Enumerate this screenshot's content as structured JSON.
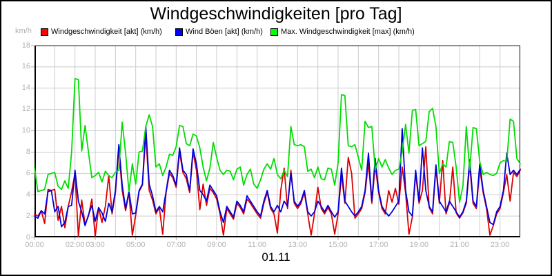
{
  "window": {
    "background": "#ffffff",
    "frame_border": "#000000"
  },
  "chart_data": {
    "type": "line",
    "title": "Windgeschwindigkeiten [pro Tag]",
    "xlabel": "01.11",
    "ylabel": "km/h",
    "ylim": [
      0,
      18
    ],
    "xlim_hours": [
      0,
      24
    ],
    "x_interval_minutes": 10,
    "grid": true,
    "legend_position": "top",
    "colors": {
      "grid": "#cccccc",
      "axis_text": "#b0b0b0",
      "axis_line": "#000000",
      "plot_bg": "#ffffff"
    },
    "y_ticks": [
      0,
      2,
      4,
      6,
      8,
      10,
      12,
      14,
      16,
      18
    ],
    "x_ticks": [
      {
        "hour": 0,
        "label": "00:00"
      },
      {
        "hour": 2,
        "label": "02:00"
      },
      {
        "hour": 3,
        "label": "03:00"
      },
      {
        "hour": 5,
        "label": "05:00"
      },
      {
        "hour": 7,
        "label": "07:00"
      },
      {
        "hour": 9,
        "label": "09:00"
      },
      {
        "hour": 11,
        "label": "11:00"
      },
      {
        "hour": 13,
        "label": "13:00"
      },
      {
        "hour": 15,
        "label": "15:00"
      },
      {
        "hour": 17,
        "label": "17:00"
      },
      {
        "hour": 19,
        "label": "19:00"
      },
      {
        "hour": 21,
        "label": "21:00"
      },
      {
        "hour": 23,
        "label": "23:00"
      }
    ],
    "series": [
      {
        "name": "Windgeschwindigkeit [akt] (km/h)",
        "color": "#dd0000",
        "swatch": "#ff0000",
        "values": [
          2.2,
          2.0,
          2.5,
          1.3,
          4.5,
          4.4,
          4.5,
          1.6,
          2.9,
          0.9,
          2.9,
          4.3,
          6.0,
          0.1,
          3.5,
          1.2,
          2.0,
          3.6,
          0.1,
          2.8,
          1.4,
          2.9,
          5.8,
          2.2,
          4.2,
          8.2,
          4.4,
          2.5,
          4.2,
          0.2,
          2.1,
          4.3,
          4.9,
          9.7,
          4.4,
          3.5,
          2.2,
          2.8,
          0.3,
          4.2,
          6.0,
          5.6,
          4.7,
          8.0,
          6.1,
          5.5,
          4.2,
          8.0,
          6.3,
          2.6,
          5.0,
          3.0,
          4.6,
          4.2,
          3.6,
          2.2,
          0.2,
          2.7,
          2.2,
          1.7,
          3.2,
          2.8,
          2.2,
          3.6,
          3.2,
          2.7,
          2.2,
          1.8,
          3.2,
          4.2,
          2.7,
          2.2,
          0.4,
          4.4,
          6.5,
          2.7,
          6.3,
          3.2,
          2.7,
          3.2,
          4.2,
          2.2,
          0.2,
          2.2,
          4.7,
          2.7,
          2.2,
          2.8,
          2.2,
          0.3,
          2.2,
          5.9,
          3.2,
          7.5,
          6.0,
          1.8,
          2.2,
          2.7,
          4.2,
          7.0,
          3.2,
          6.8,
          4.2,
          2.7,
          2.2,
          4.4,
          3.3,
          4.6,
          3.1,
          6.6,
          4.2,
          0.3,
          1.9,
          6.0,
          3.2,
          4.4,
          8.5,
          2.8,
          2.2,
          6.5,
          3.2,
          7.2,
          2.2,
          3.2,
          6.6,
          2.3,
          1.8,
          2.3,
          3.2,
          6.8,
          3.2,
          2.7,
          6.5,
          4.2,
          2.7,
          0.2,
          1.1,
          2.2,
          2.7,
          4.2,
          5.9,
          3.4,
          6.1,
          5.7,
          6.3
        ]
      },
      {
        "name": "Wind Böen [akt] (km/h)",
        "color": "#0000dd",
        "swatch": "#0000ff",
        "values": [
          2.0,
          1.8,
          2.5,
          2.2,
          4.3,
          4.4,
          2.4,
          2.9,
          1.0,
          1.4,
          2.9,
          3.0,
          6.3,
          3.4,
          2.4,
          1.1,
          2.1,
          3.0,
          1.5,
          2.8,
          2.3,
          1.5,
          3.2,
          2.4,
          4.4,
          8.7,
          4.9,
          2.7,
          4.3,
          2.2,
          2.3,
          4.4,
          5.0,
          10.4,
          5.0,
          3.9,
          2.4,
          2.9,
          2.4,
          4.3,
          6.3,
          5.8,
          4.9,
          8.4,
          6.3,
          5.9,
          4.4,
          8.3,
          6.9,
          4.4,
          4.0,
          3.4,
          4.9,
          4.4,
          3.9,
          2.4,
          1.4,
          2.9,
          2.4,
          1.9,
          3.4,
          3.0,
          2.4,
          3.9,
          3.4,
          2.9,
          2.4,
          2.0,
          3.4,
          4.4,
          2.9,
          2.4,
          3.0,
          2.4,
          3.4,
          2.9,
          6.0,
          3.4,
          2.9,
          3.4,
          4.4,
          2.4,
          2.0,
          2.4,
          3.4,
          2.9,
          2.4,
          3.0,
          2.4,
          1.9,
          2.4,
          6.5,
          3.4,
          2.9,
          2.4,
          2.0,
          2.4,
          2.9,
          4.4,
          7.9,
          3.4,
          7.4,
          4.4,
          2.9,
          2.4,
          2.0,
          2.4,
          2.9,
          3.4,
          10.2,
          4.4,
          2.4,
          2.0,
          6.3,
          3.4,
          8.4,
          4.4,
          2.9,
          2.4,
          6.8,
          3.4,
          2.9,
          2.4,
          3.4,
          2.9,
          2.4,
          1.9,
          2.4,
          3.4,
          7.3,
          3.4,
          2.9,
          6.9,
          4.4,
          2.9,
          1.4,
          1.2,
          2.4,
          2.9,
          4.4,
          7.9,
          5.9,
          6.3,
          5.9,
          6.4
        ]
      },
      {
        "name": "Max. Windgeschwindigkeit [max] (km/h)",
        "color": "#00dd00",
        "swatch": "#00ff00",
        "values": [
          6.6,
          4.3,
          4.4,
          4.5,
          5.9,
          6.0,
          6.1,
          4.8,
          4.5,
          5.3,
          4.6,
          8.0,
          14.9,
          14.8,
          8.1,
          10.5,
          8.0,
          5.6,
          5.8,
          6.1,
          5.2,
          6.2,
          5.8,
          5.6,
          6.1,
          6.3,
          10.8,
          7.9,
          4.3,
          6.9,
          5.0,
          8.0,
          8.1,
          10.4,
          11.5,
          10.4,
          6.6,
          6.9,
          5.8,
          6.6,
          7.8,
          7.7,
          8.5,
          10.5,
          10.4,
          8.8,
          8.6,
          9.7,
          9.5,
          8.4,
          6.6,
          5.3,
          6.5,
          8.9,
          7.5,
          6.3,
          5.9,
          6.3,
          6.2,
          5.4,
          6.4,
          6.6,
          4.9,
          5.9,
          6.4,
          5.0,
          4.6,
          5.4,
          6.4,
          6.9,
          6.4,
          7.4,
          5.9,
          5.5,
          6.3,
          5.7,
          10.4,
          8.7,
          8.6,
          8.7,
          8.5,
          6.2,
          6.4,
          5.6,
          6.6,
          5.5,
          5.4,
          6.5,
          6.4,
          4.9,
          7.0,
          13.4,
          13.3,
          8.6,
          8.5,
          8.7,
          7.5,
          6.3,
          10.9,
          10.3,
          10.4,
          6.3,
          7.4,
          6.6,
          7.3,
          6.5,
          5.9,
          6.3,
          6.4,
          8.0,
          10.6,
          7.9,
          11.9,
          12.0,
          8.6,
          8.8,
          9.0,
          11.8,
          12.1,
          10.4,
          6.0,
          6.9,
          6.6,
          9.0,
          8.9,
          6.6,
          3.3,
          4.8,
          10.4,
          6.3,
          10.3,
          10.2,
          7.1,
          5.9,
          6.1,
          5.9,
          5.8,
          6.0,
          7.0,
          7.2,
          7.1,
          11.1,
          10.9,
          7.4,
          6.9
        ]
      }
    ]
  }
}
